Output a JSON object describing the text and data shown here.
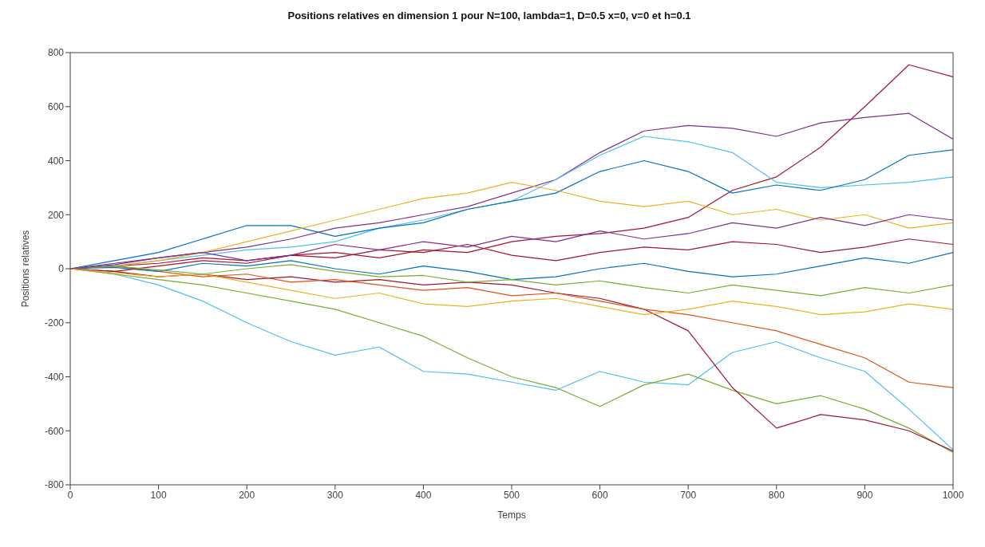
{
  "chart_data": {
    "type": "line",
    "title": "Positions relatives en dimension 1 pour N=100, lambda=1, D=0.5 x=0, v=0 et h=0.1",
    "xlabel": "Temps",
    "ylabel": "Positions relatives",
    "x": [
      0,
      50,
      100,
      150,
      200,
      250,
      300,
      350,
      400,
      450,
      500,
      550,
      600,
      650,
      700,
      750,
      800,
      850,
      900,
      950,
      1000
    ],
    "xlim": [
      0,
      1000
    ],
    "xticks": [
      0,
      100,
      200,
      300,
      400,
      500,
      600,
      700,
      800,
      900,
      1000
    ],
    "ylim": [
      -800,
      800
    ],
    "yticks": [
      -800,
      -600,
      -400,
      -200,
      0,
      200,
      400,
      600,
      800
    ],
    "marker": "none",
    "line_style": "solid",
    "series": [
      {
        "color": "#a2142f",
        "values": [
          0,
          10,
          20,
          40,
          30,
          50,
          60,
          40,
          70,
          60,
          100,
          120,
          130,
          150,
          190,
          290,
          340,
          450,
          600,
          755,
          710
        ]
      },
      {
        "color": "#7e2f8e",
        "values": [
          0,
          20,
          40,
          60,
          80,
          110,
          150,
          170,
          200,
          230,
          280,
          330,
          430,
          510,
          530,
          520,
          490,
          540,
          560,
          575,
          480
        ]
      },
      {
        "color": "#4dbeee",
        "values": [
          0,
          10,
          30,
          50,
          70,
          80,
          100,
          150,
          180,
          220,
          250,
          330,
          420,
          490,
          470,
          430,
          320,
          300,
          310,
          320,
          340
        ]
      },
      {
        "color": "#0072bd",
        "values": [
          0,
          30,
          60,
          110,
          160,
          160,
          120,
          150,
          170,
          220,
          250,
          280,
          360,
          400,
          360,
          280,
          310,
          290,
          330,
          420,
          440
        ]
      },
      {
        "color": "#edb120",
        "values": [
          0,
          10,
          30,
          60,
          100,
          140,
          180,
          220,
          260,
          280,
          320,
          290,
          250,
          230,
          250,
          200,
          220,
          180,
          200,
          150,
          170
        ]
      },
      {
        "color": "#4dbeee",
        "values": [
          0,
          -20,
          -60,
          -120,
          -200,
          -270,
          -320,
          -290,
          -380,
          -390,
          -420,
          -450,
          -380,
          -420,
          -430,
          -310,
          -270,
          -330,
          -380,
          -520,
          -670
        ]
      },
      {
        "color": "#77ac30",
        "values": [
          0,
          -20,
          -40,
          -60,
          -90,
          -120,
          -150,
          -200,
          -250,
          -330,
          -400,
          -440,
          -510,
          -430,
          -390,
          -450,
          -500,
          -470,
          -520,
          -590,
          -680
        ]
      },
      {
        "color": "#a2142f",
        "values": [
          0,
          -10,
          -30,
          -20,
          -40,
          -30,
          -50,
          -40,
          -60,
          -50,
          -60,
          -90,
          -110,
          -150,
          -230,
          -440,
          -590,
          -540,
          -560,
          -600,
          -675
        ]
      },
      {
        "color": "#d95319",
        "values": [
          0,
          10,
          -10,
          -30,
          -20,
          -50,
          -40,
          -60,
          -80,
          -70,
          -100,
          -90,
          -120,
          -150,
          -170,
          -200,
          -230,
          -280,
          -330,
          -420,
          -440
        ]
      },
      {
        "color": "#0072bd",
        "values": [
          0,
          5,
          -10,
          20,
          10,
          30,
          0,
          -20,
          10,
          -10,
          -40,
          -30,
          0,
          20,
          -10,
          -30,
          -20,
          10,
          40,
          20,
          60
        ]
      },
      {
        "color": "#a2142f",
        "values": [
          0,
          -10,
          10,
          30,
          20,
          50,
          40,
          70,
          60,
          90,
          50,
          30,
          60,
          80,
          70,
          100,
          90,
          60,
          80,
          110,
          90
        ]
      },
      {
        "color": "#edb120",
        "values": [
          0,
          -15,
          -30,
          -20,
          -50,
          -80,
          -110,
          -90,
          -130,
          -140,
          -120,
          -110,
          -140,
          -170,
          -150,
          -120,
          -140,
          -170,
          -160,
          -130,
          -150
        ]
      },
      {
        "color": "#77ac30",
        "values": [
          0,
          10,
          -5,
          -20,
          0,
          15,
          -10,
          -30,
          -25,
          -50,
          -40,
          -60,
          -45,
          -70,
          -90,
          -60,
          -80,
          -100,
          -70,
          -90,
          -60
        ]
      },
      {
        "color": "#7e2f8e",
        "values": [
          0,
          15,
          40,
          60,
          30,
          50,
          90,
          70,
          100,
          80,
          120,
          100,
          140,
          110,
          130,
          170,
          150,
          190,
          160,
          200,
          180
        ]
      }
    ]
  }
}
